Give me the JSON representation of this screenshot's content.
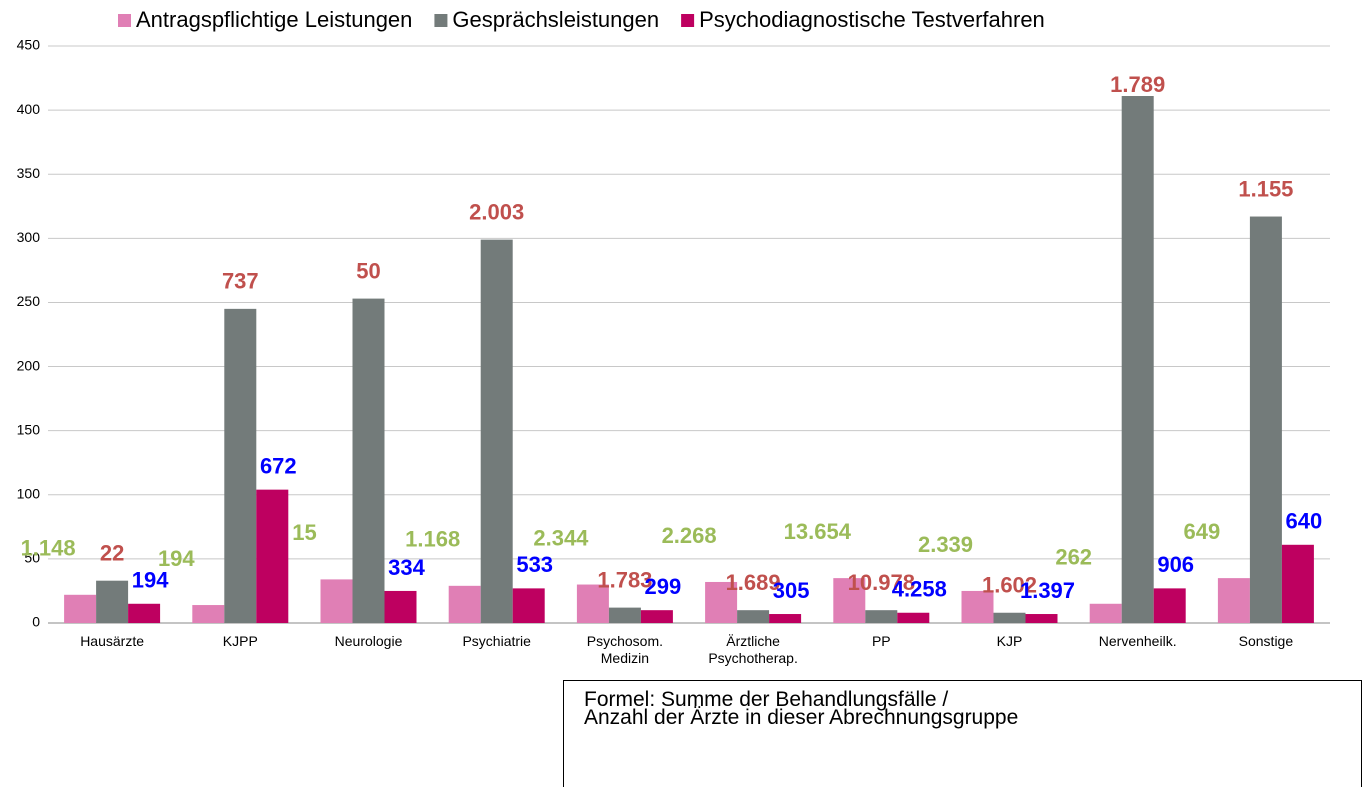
{
  "chart_data": {
    "type": "bar",
    "categories": [
      "Hausärzte",
      "KJPP",
      "Neurologie",
      "Psychiatrie",
      "Psychosom.\nMedizin",
      "Ärztliche\nPsychotherap.",
      "PP",
      "KJP",
      "Nervenheilk.",
      "Sonstige"
    ],
    "series": [
      {
        "name": "Antragspflichtige Leistungen",
        "color": "#e07fb5",
        "values": [
          22,
          14,
          34,
          29,
          30,
          32,
          35,
          25,
          15,
          35
        ]
      },
      {
        "name": "Gesprächsleistungen",
        "color": "#737b7a",
        "values": [
          33,
          245,
          253,
          299,
          12,
          10,
          10,
          8,
          411,
          317
        ]
      },
      {
        "name": "Psychodiagnostische Testverfahren",
        "color": "#be0060",
        "values": [
          15,
          104,
          25,
          27,
          10,
          7,
          8,
          7,
          27,
          61
        ]
      }
    ],
    "annotations": [
      {
        "color": "#9bbb59",
        "texts": [
          "1.148",
          "194",
          "15",
          "1.168",
          "2.344",
          "2.268",
          "13.654",
          "2.339",
          "262",
          "649"
        ]
      },
      {
        "color": "#c0504d",
        "texts": [
          "22",
          "737",
          "50",
          "2.003",
          "1.783",
          "1.689",
          "10.978",
          "1.602",
          "1.789",
          "1.155"
        ]
      },
      {
        "color": "#0000ff",
        "texts": [
          "194",
          "672",
          "334",
          "533",
          "299",
          "305",
          "4.258",
          "1.397",
          "906",
          "640"
        ]
      }
    ],
    "ylim": [
      0,
      450
    ],
    "yticks": [
      0,
      50,
      100,
      150,
      200,
      250,
      300,
      350,
      400,
      450
    ],
    "grid": true,
    "legend": "top",
    "note": "Formel: Summe der Behandlungsfälle /\nAnzahl der Ärzte in dieser Abrechnungsgruppe"
  }
}
